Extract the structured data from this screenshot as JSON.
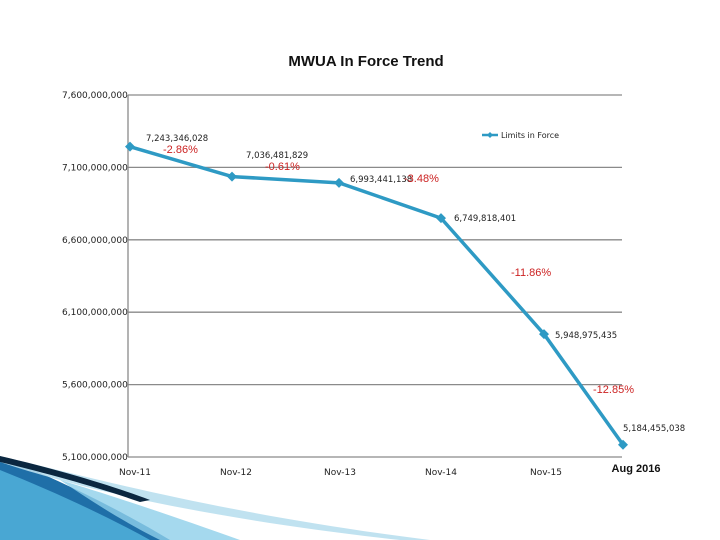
{
  "chart_data": {
    "type": "line",
    "title": "MWUA In Force Trend",
    "categories": [
      "Nov-11",
      "Nov-12",
      "Nov-13",
      "Nov-14",
      "Nov-15",
      "Aug 2016"
    ],
    "series": [
      {
        "name": "Limits in Force",
        "color": "#2e9ac4",
        "values": [
          7243346028,
          7036481829,
          6993441138,
          6749818401,
          5948975435,
          5184455038
        ],
        "value_labels": [
          "7,243,346,028",
          "7,036,481,829",
          "6,993,441,138",
          "6,749,818,401",
          "5,948,975,435",
          "5,184,455,038"
        ]
      }
    ],
    "change_labels": [
      "-2.86%",
      "-0.61%",
      "-3.48%",
      "-11.86%",
      "-12.85%"
    ],
    "change_color": "#cc2222",
    "ylim": [
      5100000000,
      7600000000
    ],
    "yticks": [
      5100000000,
      5600000000,
      6100000000,
      6600000000,
      7100000000,
      7600000000
    ],
    "ytick_labels": [
      "5,100,000,000",
      "5,600,000,000",
      "6,100,000,000",
      "6,600,000,000",
      "7,100,000,000",
      "7,600,000,000"
    ],
    "legend": "Limits in Force",
    "grid": true
  }
}
